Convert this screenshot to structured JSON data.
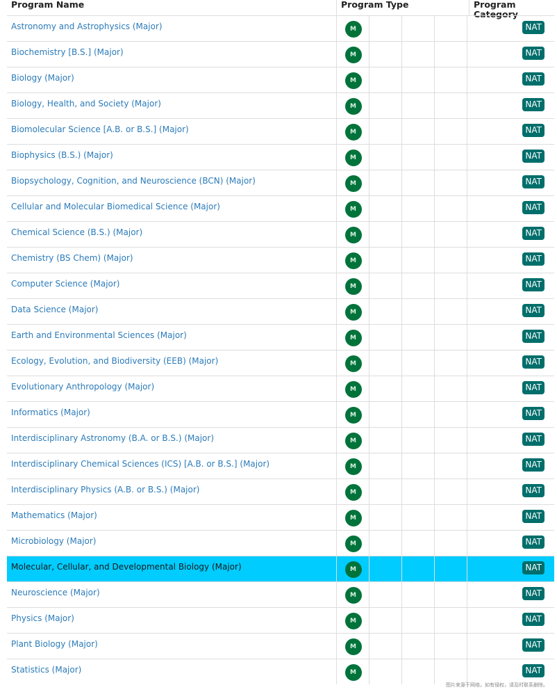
{
  "headers": {
    "name": "Program Name",
    "type": "Program Type",
    "category": "Program Category"
  },
  "colors": {
    "link": "#2b7bb9",
    "type_badge": "#00733b",
    "category_badge": "#006e6b",
    "highlight": "#00ccff"
  },
  "selected_index": 21,
  "rows": [
    {
      "name": "Astronomy and Astrophysics (Major)",
      "type": "M",
      "category": "NAT"
    },
    {
      "name": "Biochemistry [B.S.] (Major)",
      "type": "M",
      "category": "NAT"
    },
    {
      "name": "Biology (Major)",
      "type": "M",
      "category": "NAT"
    },
    {
      "name": "Biology, Health, and Society (Major)",
      "type": "M",
      "category": "NAT"
    },
    {
      "name": "Biomolecular Science [A.B. or B.S.] (Major)",
      "type": "M",
      "category": "NAT"
    },
    {
      "name": "Biophysics (B.S.) (Major)",
      "type": "M",
      "category": "NAT"
    },
    {
      "name": "Biopsychology, Cognition, and Neuroscience (BCN) (Major)",
      "type": "M",
      "category": "NAT"
    },
    {
      "name": "Cellular and Molecular Biomedical Science (Major)",
      "type": "M",
      "category": "NAT"
    },
    {
      "name": "Chemical Science (B.S.) (Major)",
      "type": "M",
      "category": "NAT"
    },
    {
      "name": "Chemistry (BS Chem) (Major)",
      "type": "M",
      "category": "NAT"
    },
    {
      "name": "Computer Science (Major)",
      "type": "M",
      "category": "NAT"
    },
    {
      "name": "Data Science (Major)",
      "type": "M",
      "category": "NAT"
    },
    {
      "name": "Earth and Environmental Sciences (Major)",
      "type": "M",
      "category": "NAT"
    },
    {
      "name": "Ecology, Evolution, and Biodiversity (EEB) (Major)",
      "type": "M",
      "category": "NAT"
    },
    {
      "name": "Evolutionary Anthropology (Major)",
      "type": "M",
      "category": "NAT"
    },
    {
      "name": "Informatics (Major)",
      "type": "M",
      "category": "NAT"
    },
    {
      "name": "Interdisciplinary Astronomy (B.A. or B.S.) (Major)",
      "type": "M",
      "category": "NAT"
    },
    {
      "name": "Interdisciplinary Chemical Sciences (ICS) [A.B. or B.S.] (Major)",
      "type": "M",
      "category": "NAT"
    },
    {
      "name": "Interdisciplinary Physics (A.B. or B.S.) (Major)",
      "type": "M",
      "category": "NAT"
    },
    {
      "name": "Mathematics (Major)",
      "type": "M",
      "category": "NAT"
    },
    {
      "name": "Microbiology (Major)",
      "type": "M",
      "category": "NAT"
    },
    {
      "name": "Molecular, Cellular, and Developmental Biology (Major)",
      "type": "M",
      "category": "NAT"
    },
    {
      "name": "Neuroscience (Major)",
      "type": "M",
      "category": "NAT"
    },
    {
      "name": "Physics (Major)",
      "type": "M",
      "category": "NAT"
    },
    {
      "name": "Plant Biology (Major)",
      "type": "M",
      "category": "NAT"
    },
    {
      "name": "Statistics (Major)",
      "type": "M",
      "category": "NAT"
    }
  ],
  "watermark": "图片来源于网络，如有侵权，请及时联系删除。"
}
